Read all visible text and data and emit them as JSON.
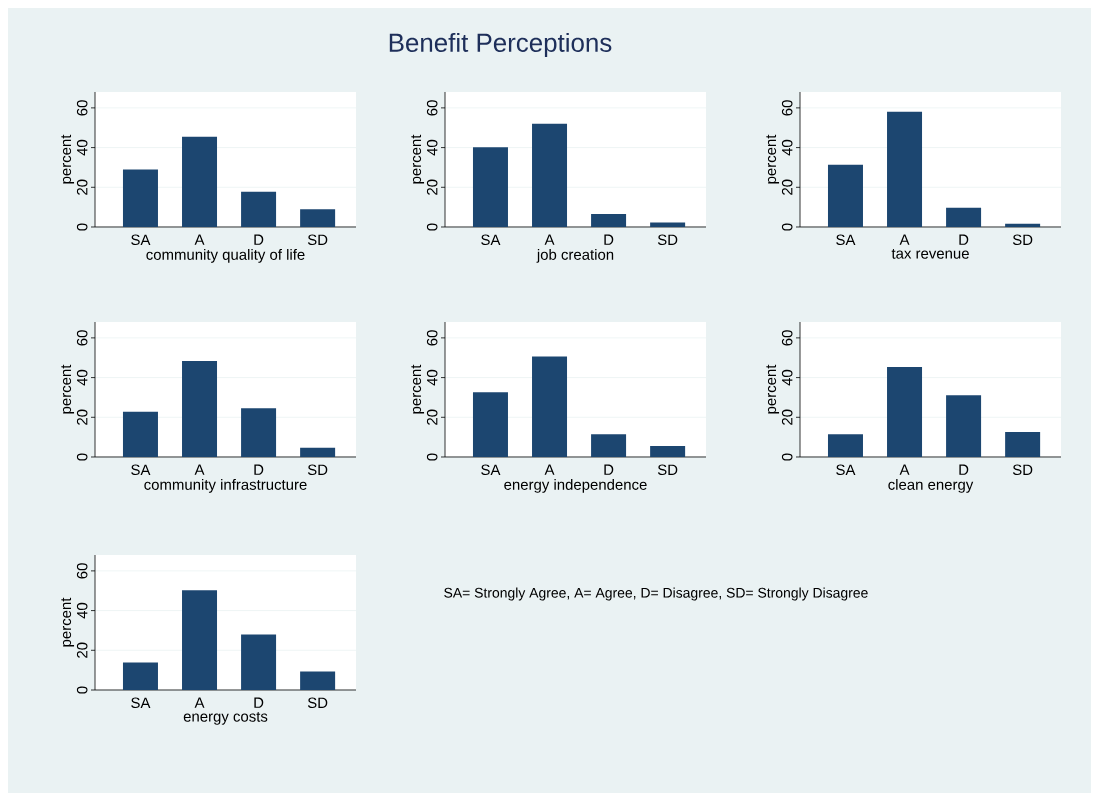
{
  "chart_data": [
    {
      "type": "bar",
      "categories": [
        "SA",
        "A",
        "D",
        "SD"
      ],
      "values": [
        29,
        45.5,
        17.8,
        8.9
      ],
      "color": "#1c4670",
      "xlabel": "community quality of life",
      "ylabel": "percent",
      "ylim": [
        0,
        68
      ],
      "yticks": [
        0,
        20,
        40,
        60
      ],
      "grid": "y"
    },
    {
      "type": "bar",
      "title": "Benefit Perceptions",
      "categories": [
        "SA",
        "A",
        "D",
        "SD"
      ],
      "values": [
        40.2,
        52,
        6.6,
        2.3
      ],
      "color": "#1c4670",
      "xlabel": "job creation",
      "ylabel": "percent",
      "ylim": [
        0,
        68
      ],
      "yticks": [
        0,
        20,
        40,
        60
      ],
      "grid": "y"
    },
    {
      "type": "bar",
      "categories": [
        "SA",
        "A",
        "D",
        "SD"
      ],
      "values": [
        31.3,
        58,
        9.7,
        1.6
      ],
      "color": "#1c4670",
      "xlabel": "tax revenue",
      "ylabel": "percent",
      "ylim": [
        0,
        68
      ],
      "yticks": [
        0,
        20,
        40,
        60
      ],
      "grid": "y"
    },
    {
      "type": "bar",
      "categories": [
        "SA",
        "A",
        "D",
        "SD"
      ],
      "values": [
        22.8,
        48.4,
        24.6,
        4.6
      ],
      "color": "#1c4670",
      "xlabel": "community infrastructure",
      "ylabel": "percent",
      "ylim": [
        0,
        68
      ],
      "yticks": [
        0,
        20,
        40,
        60
      ],
      "grid": "y"
    },
    {
      "type": "bar",
      "categories": [
        "SA",
        "A",
        "D",
        "SD"
      ],
      "values": [
        32.6,
        50.6,
        11.5,
        5.5
      ],
      "color": "#1c4670",
      "xlabel": "energy independence",
      "ylabel": "percent",
      "ylim": [
        0,
        68
      ],
      "yticks": [
        0,
        20,
        40,
        60
      ],
      "grid": "y"
    },
    {
      "type": "bar",
      "categories": [
        "SA",
        "A",
        "D",
        "SD"
      ],
      "values": [
        11.5,
        45.3,
        31.1,
        12.6
      ],
      "color": "#1c4670",
      "xlabel": "clean energy",
      "ylabel": "percent",
      "ylim": [
        0,
        68
      ],
      "yticks": [
        0,
        20,
        40,
        60
      ],
      "grid": "y"
    },
    {
      "type": "bar",
      "categories": [
        "SA",
        "A",
        "D",
        "SD"
      ],
      "values": [
        13.9,
        50.2,
        27.9,
        9.3
      ],
      "color": "#1c4670",
      "xlabel": "energy costs",
      "ylabel": "percent",
      "ylim": [
        0,
        68
      ],
      "yticks": [
        0,
        20,
        40,
        60
      ],
      "grid": "y",
      "annotations": [
        "SA= Strongly Agree, A= Agree, D= Disagree, SD= Strongly Disagree"
      ]
    }
  ]
}
